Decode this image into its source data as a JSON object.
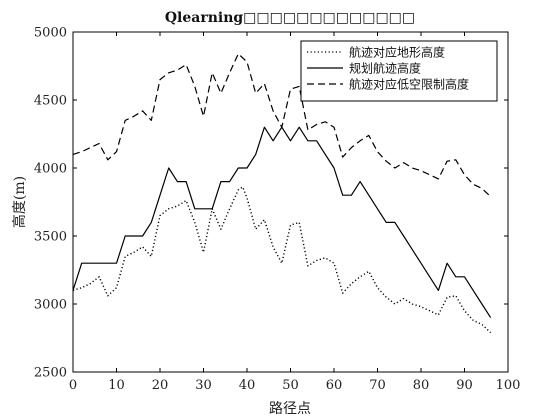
{
  "chart_data": {
    "type": "line",
    "title": "Qlearning□□□□□□□□□□□□□",
    "xlabel": "路径点",
    "ylabel": "高度(m)",
    "xlim": [
      0,
      100
    ],
    "ylim": [
      2500,
      5000
    ],
    "xticks": [
      0,
      10,
      20,
      30,
      40,
      50,
      60,
      70,
      80,
      90,
      100
    ],
    "yticks": [
      2500,
      3000,
      3500,
      4000,
      4500,
      5000
    ],
    "grid": false,
    "legend_position": "top-right",
    "series": [
      {
        "name": "航迹对应地形高度",
        "style": "dotted",
        "color": "#000000",
        "x": [
          0,
          2,
          4,
          6,
          8,
          10,
          12,
          14,
          16,
          18,
          20,
          22,
          24,
          26,
          28,
          30,
          32,
          34,
          36,
          38,
          39,
          40,
          42,
          44,
          46,
          48,
          50,
          52,
          54,
          56,
          58,
          60,
          62,
          64,
          66,
          68,
          70,
          72,
          74,
          76,
          78,
          80,
          82,
          84,
          86,
          88,
          90,
          92,
          94,
          96
        ],
        "values": [
          3100,
          3120,
          3150,
          3200,
          3060,
          3120,
          3350,
          3380,
          3420,
          3350,
          3650,
          3700,
          3720,
          3760,
          3600,
          3380,
          3700,
          3550,
          3700,
          3840,
          3860,
          3780,
          3550,
          3620,
          3420,
          3300,
          3580,
          3600,
          3280,
          3320,
          3340,
          3300,
          3080,
          3150,
          3200,
          3240,
          3120,
          3050,
          3000,
          3040,
          3000,
          2980,
          2950,
          2920,
          3050,
          3060,
          2950,
          2880,
          2850,
          2790
        ]
      },
      {
        "name": "规划航迹高度",
        "style": "solid",
        "color": "#000000",
        "x": [
          0,
          2,
          4,
          6,
          8,
          10,
          12,
          14,
          16,
          18,
          20,
          22,
          24,
          26,
          28,
          30,
          32,
          34,
          36,
          38,
          40,
          42,
          44,
          46,
          48,
          50,
          52,
          54,
          56,
          58,
          60,
          62,
          64,
          66,
          68,
          70,
          72,
          74,
          76,
          78,
          80,
          82,
          84,
          86,
          88,
          90,
          92,
          94,
          96
        ],
        "values": [
          3100,
          3300,
          3300,
          3300,
          3300,
          3300,
          3500,
          3500,
          3500,
          3600,
          3800,
          4000,
          3900,
          3900,
          3700,
          3700,
          3700,
          3900,
          3900,
          4000,
          4000,
          4100,
          4300,
          4200,
          4300,
          4200,
          4300,
          4200,
          4200,
          4100,
          4000,
          3800,
          3800,
          3900,
          3800,
          3700,
          3600,
          3600,
          3500,
          3400,
          3300,
          3200,
          3100,
          3300,
          3200,
          3200,
          3100,
          3000,
          2900
        ]
      },
      {
        "name": "航迹对应低空限制高度",
        "style": "dashed",
        "color": "#000000",
        "x": [
          0,
          2,
          4,
          6,
          8,
          10,
          12,
          14,
          16,
          18,
          20,
          22,
          24,
          26,
          28,
          30,
          32,
          34,
          36,
          38,
          40,
          42,
          44,
          46,
          48,
          50,
          52,
          54,
          56,
          58,
          60,
          62,
          64,
          66,
          68,
          70,
          72,
          74,
          76,
          78,
          80,
          82,
          84,
          86,
          88,
          90,
          92,
          94,
          96
        ],
        "values": [
          4100,
          4120,
          4150,
          4180,
          4060,
          4120,
          4350,
          4380,
          4420,
          4350,
          4650,
          4700,
          4720,
          4760,
          4600,
          4380,
          4700,
          4550,
          4700,
          4840,
          4780,
          4550,
          4620,
          4420,
          4300,
          4580,
          4600,
          4280,
          4320,
          4340,
          4300,
          4080,
          4150,
          4200,
          4240,
          4120,
          4050,
          4000,
          4040,
          4000,
          3980,
          3950,
          3920,
          4050,
          4060,
          3950,
          3880,
          3850,
          3790
        ]
      }
    ]
  }
}
